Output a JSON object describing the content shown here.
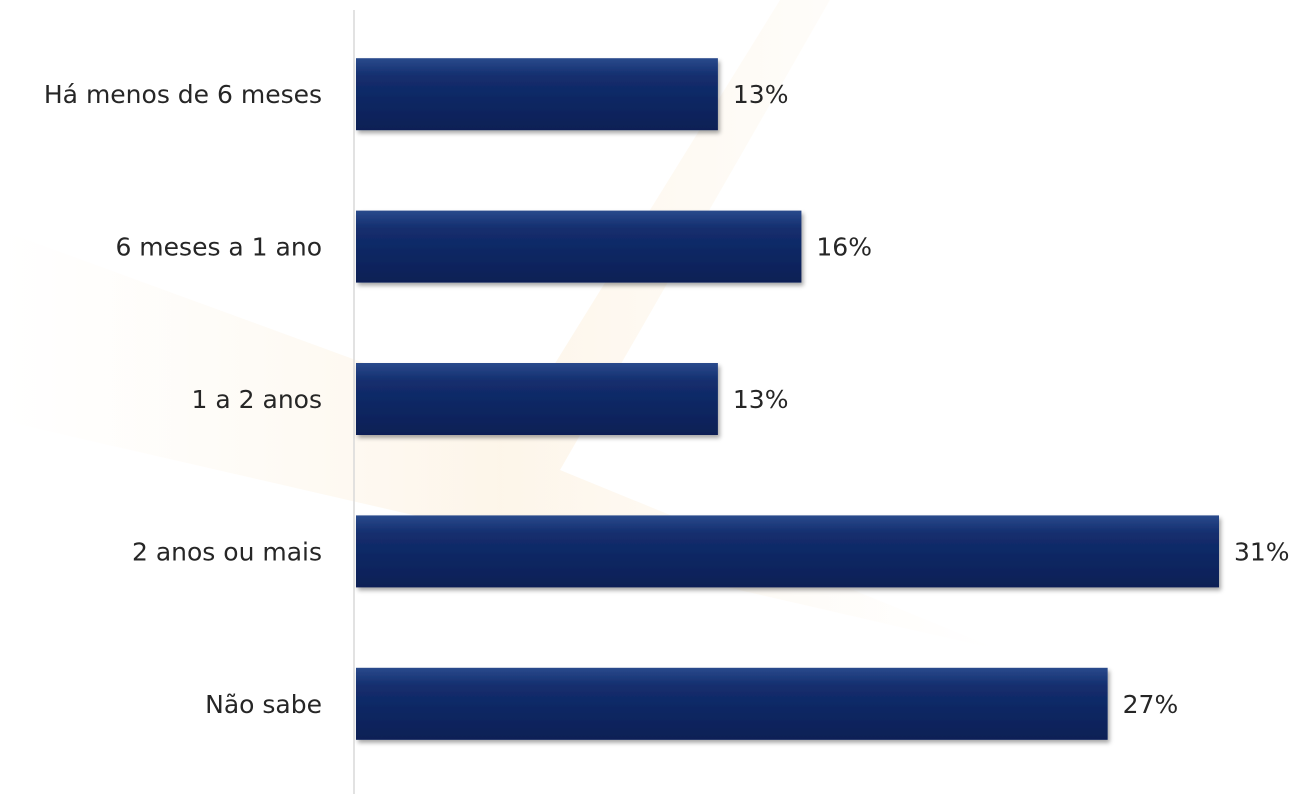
{
  "chart_data": {
    "type": "bar",
    "orientation": "horizontal",
    "categories": [
      "Há menos de 6 meses",
      "6 meses a 1 ano",
      "1 a 2 anos",
      "2 anos ou mais",
      "Não sabe"
    ],
    "values": [
      13,
      16,
      13,
      31,
      27
    ],
    "value_labels": [
      "13%",
      "16%",
      "13%",
      "31%",
      "27%"
    ],
    "xlim": [
      0,
      31
    ],
    "grid": false,
    "legend": "none",
    "colors": {
      "bar_top": "#1e3a7a",
      "bar_bottom": "#0a1f55",
      "axis": "#d9d9d9",
      "text": "#262626",
      "watermark": "#f7d9a8"
    }
  }
}
